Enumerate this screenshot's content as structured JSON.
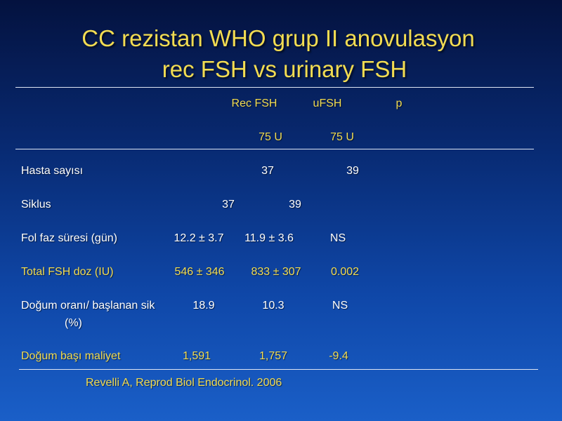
{
  "title": {
    "line1": "CC rezistan WHO grup II anovulasyon",
    "line2": "rec FSH vs urinary FSH"
  },
  "table": {
    "header": {
      "col1": "Rec FSH",
      "col2": "uFSH",
      "col3": "p",
      "dose1": "75 U",
      "dose2": "75 U"
    },
    "rows": [
      {
        "label": "Hasta sayısı",
        "v1": "37",
        "v2": "39",
        "p": ""
      },
      {
        "label": "Siklus",
        "v1": "37",
        "v2": "39",
        "p": ""
      },
      {
        "label": "Fol faz  süresi (gün)",
        "v1": "12.2 ± 3.7",
        "v2": "11.9 ± 3.6",
        "p": "NS"
      },
      {
        "label": "Total FSH doz (IU)",
        "v1": "546 ± 346",
        "v2": "833 ± 307",
        "p": "0.002"
      },
      {
        "label": "Doğum oranı/ başlanan sik",
        "label_cont": "(%)",
        "v1": "18.9",
        "v2": "10.3",
        "p": "NS"
      },
      {
        "label": "Doğum başı maliyet",
        "v1": "1,591",
        "v2": "1,757",
        "p": "-9.4"
      }
    ]
  },
  "citation": "Revelli A, Reprod Biol Endocrinol. 2006",
  "colors": {
    "title": "#f2dc52",
    "highlight_text": "#f2dc52",
    "normal_text": "#ffffff",
    "rule": "#dfe6f4",
    "background_top": "#04123f",
    "background_bottom": "#1a5fc8"
  }
}
